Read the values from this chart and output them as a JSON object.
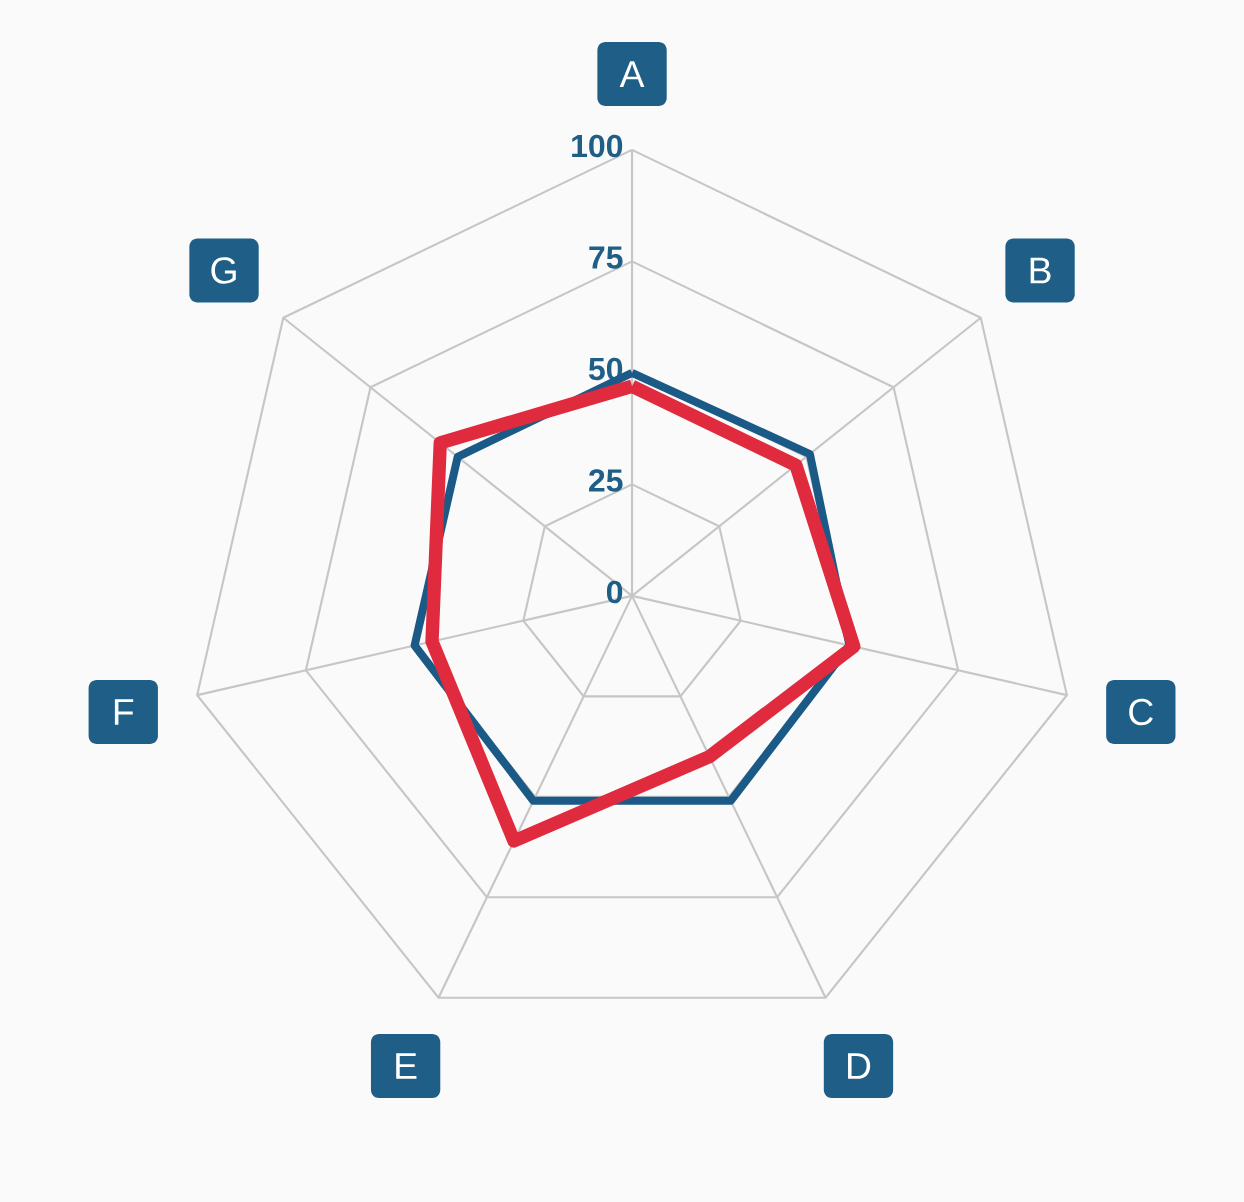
{
  "chart_data": {
    "type": "radar",
    "categories": [
      "A",
      "B",
      "C",
      "D",
      "E",
      "F",
      "G"
    ],
    "ylim": [
      0,
      100
    ],
    "yticks": [
      0,
      25,
      50,
      75,
      100
    ],
    "grid": true,
    "marker": "none",
    "line_style": "solid",
    "series": [
      {
        "color": "#1b5a86",
        "values": [
          50,
          51,
          50,
          51,
          51,
          50,
          50
        ]
      },
      {
        "color": "#e02a3e",
        "values": [
          47,
          47,
          51,
          40,
          61,
          46,
          55
        ]
      }
    ]
  }
}
